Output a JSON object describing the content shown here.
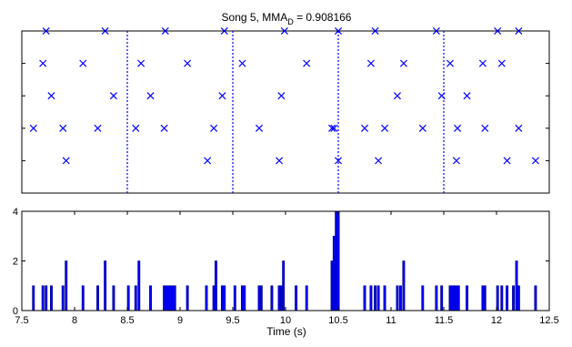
{
  "title": "Song 5, MMA",
  "title_sub": "D",
  "title_value": " = 0.908166",
  "xlabel": "Time (s)",
  "colors": {
    "marker": "#0000ff",
    "bar_fill": "#0000ff",
    "bar_edge": "#000080",
    "axis": "#000000"
  },
  "chart_data": [
    {
      "type": "scatter",
      "marker": "x",
      "xlim": [
        7.5,
        12.5
      ],
      "ylim": [
        0,
        5
      ],
      "y_ticks": [
        1,
        2,
        3,
        4,
        5
      ],
      "tick_labels_shown": false,
      "divider_lines": [
        8.5,
        9.5,
        10.5,
        11.5
      ],
      "points": [
        {
          "x": 7.61,
          "y": 2
        },
        {
          "x": 7.7,
          "y": 4
        },
        {
          "x": 7.73,
          "y": 5
        },
        {
          "x": 7.78,
          "y": 3
        },
        {
          "x": 7.89,
          "y": 2
        },
        {
          "x": 7.92,
          "y": 1
        },
        {
          "x": 8.08,
          "y": 4
        },
        {
          "x": 8.22,
          "y": 2
        },
        {
          "x": 8.29,
          "y": 5
        },
        {
          "x": 8.37,
          "y": 3
        },
        {
          "x": 8.58,
          "y": 2
        },
        {
          "x": 8.63,
          "y": 4
        },
        {
          "x": 8.72,
          "y": 3
        },
        {
          "x": 8.85,
          "y": 2
        },
        {
          "x": 8.86,
          "y": 5
        },
        {
          "x": 9.07,
          "y": 4
        },
        {
          "x": 9.26,
          "y": 1
        },
        {
          "x": 9.32,
          "y": 2
        },
        {
          "x": 9.4,
          "y": 3
        },
        {
          "x": 9.42,
          "y": 5
        },
        {
          "x": 9.59,
          "y": 4
        },
        {
          "x": 9.75,
          "y": 2
        },
        {
          "x": 9.94,
          "y": 1
        },
        {
          "x": 9.96,
          "y": 3
        },
        {
          "x": 9.99,
          "y": 5
        },
        {
          "x": 10.2,
          "y": 4
        },
        {
          "x": 10.44,
          "y": 2
        },
        {
          "x": 10.46,
          "y": 2
        },
        {
          "x": 10.5,
          "y": 1
        },
        {
          "x": 10.5,
          "y": 5
        },
        {
          "x": 10.75,
          "y": 2
        },
        {
          "x": 10.81,
          "y": 4
        },
        {
          "x": 10.85,
          "y": 5
        },
        {
          "x": 10.88,
          "y": 1
        },
        {
          "x": 10.94,
          "y": 2
        },
        {
          "x": 11.06,
          "y": 3
        },
        {
          "x": 11.12,
          "y": 4
        },
        {
          "x": 11.3,
          "y": 2
        },
        {
          "x": 11.43,
          "y": 5
        },
        {
          "x": 11.48,
          "y": 3
        },
        {
          "x": 11.56,
          "y": 4
        },
        {
          "x": 11.62,
          "y": 1
        },
        {
          "x": 11.63,
          "y": 2
        },
        {
          "x": 11.72,
          "y": 3
        },
        {
          "x": 11.87,
          "y": 4
        },
        {
          "x": 11.89,
          "y": 2
        },
        {
          "x": 12.01,
          "y": 5
        },
        {
          "x": 12.05,
          "y": 4
        },
        {
          "x": 12.1,
          "y": 1
        },
        {
          "x": 12.21,
          "y": 2
        },
        {
          "x": 12.21,
          "y": 5
        },
        {
          "x": 12.37,
          "y": 1
        }
      ]
    },
    {
      "type": "bar",
      "xlim": [
        7.5,
        12.5
      ],
      "ylim": [
        0,
        4
      ],
      "y_ticks": [
        0,
        2,
        4
      ],
      "x_ticks": [
        7.5,
        8,
        8.5,
        9,
        9.5,
        10,
        10.5,
        11,
        11.5,
        12,
        12.5
      ],
      "x_tick_labels": [
        "7.5",
        "8",
        "8.5",
        "9",
        "9.5",
        "10",
        "10.5",
        "11",
        "11.5",
        "12",
        "12.5"
      ],
      "y_tick_labels": [
        "0",
        "2",
        "4"
      ],
      "xlabel": "Time (s)",
      "bin_width": 0.02,
      "bins": [
        {
          "x": 7.61,
          "value": 1
        },
        {
          "x": 7.7,
          "value": 1
        },
        {
          "x": 7.73,
          "value": 1
        },
        {
          "x": 7.78,
          "value": 1
        },
        {
          "x": 7.89,
          "value": 1
        },
        {
          "x": 7.92,
          "value": 2
        },
        {
          "x": 8.08,
          "value": 1
        },
        {
          "x": 8.22,
          "value": 1
        },
        {
          "x": 8.29,
          "value": 2
        },
        {
          "x": 8.37,
          "value": 1
        },
        {
          "x": 8.51,
          "value": 1
        },
        {
          "x": 8.58,
          "value": 1
        },
        {
          "x": 8.61,
          "value": 2
        },
        {
          "x": 8.72,
          "value": 1
        },
        {
          "x": 8.85,
          "value": 1
        },
        {
          "x": 8.87,
          "value": 1
        },
        {
          "x": 8.89,
          "value": 1
        },
        {
          "x": 8.91,
          "value": 1
        },
        {
          "x": 8.93,
          "value": 1
        },
        {
          "x": 8.95,
          "value": 1
        },
        {
          "x": 9.07,
          "value": 1
        },
        {
          "x": 9.25,
          "value": 1
        },
        {
          "x": 9.32,
          "value": 1
        },
        {
          "x": 9.34,
          "value": 2
        },
        {
          "x": 9.4,
          "value": 1
        },
        {
          "x": 9.42,
          "value": 1
        },
        {
          "x": 9.52,
          "value": 1
        },
        {
          "x": 9.59,
          "value": 1
        },
        {
          "x": 9.61,
          "value": 1
        },
        {
          "x": 9.75,
          "value": 1
        },
        {
          "x": 9.77,
          "value": 1
        },
        {
          "x": 9.87,
          "value": 1
        },
        {
          "x": 9.94,
          "value": 1
        },
        {
          "x": 9.96,
          "value": 1
        },
        {
          "x": 9.98,
          "value": 2
        },
        {
          "x": 10.1,
          "value": 1
        },
        {
          "x": 10.2,
          "value": 1
        },
        {
          "x": 10.44,
          "value": 2
        },
        {
          "x": 10.46,
          "value": 3
        },
        {
          "x": 10.48,
          "value": 4
        },
        {
          "x": 10.5,
          "value": 4
        },
        {
          "x": 10.75,
          "value": 1
        },
        {
          "x": 10.81,
          "value": 1
        },
        {
          "x": 10.85,
          "value": 1
        },
        {
          "x": 10.88,
          "value": 1
        },
        {
          "x": 10.94,
          "value": 1
        },
        {
          "x": 11.06,
          "value": 1
        },
        {
          "x": 11.09,
          "value": 1
        },
        {
          "x": 11.12,
          "value": 2
        },
        {
          "x": 11.3,
          "value": 1
        },
        {
          "x": 11.43,
          "value": 1
        },
        {
          "x": 11.48,
          "value": 1
        },
        {
          "x": 11.56,
          "value": 1
        },
        {
          "x": 11.58,
          "value": 1
        },
        {
          "x": 11.6,
          "value": 1
        },
        {
          "x": 11.62,
          "value": 1
        },
        {
          "x": 11.64,
          "value": 1
        },
        {
          "x": 11.72,
          "value": 1
        },
        {
          "x": 11.87,
          "value": 1
        },
        {
          "x": 11.89,
          "value": 1
        },
        {
          "x": 12.01,
          "value": 1
        },
        {
          "x": 12.05,
          "value": 1
        },
        {
          "x": 12.1,
          "value": 1
        },
        {
          "x": 12.16,
          "value": 1
        },
        {
          "x": 12.19,
          "value": 2
        },
        {
          "x": 12.21,
          "value": 1
        },
        {
          "x": 12.37,
          "value": 1
        }
      ]
    }
  ]
}
